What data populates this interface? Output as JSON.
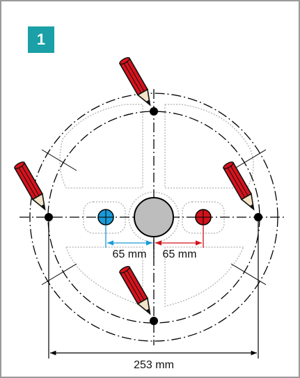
{
  "badge": "1",
  "dimensions": {
    "left_offset": "65 mm",
    "right_offset": "65 mm",
    "total_width": "253 mm"
  }
}
